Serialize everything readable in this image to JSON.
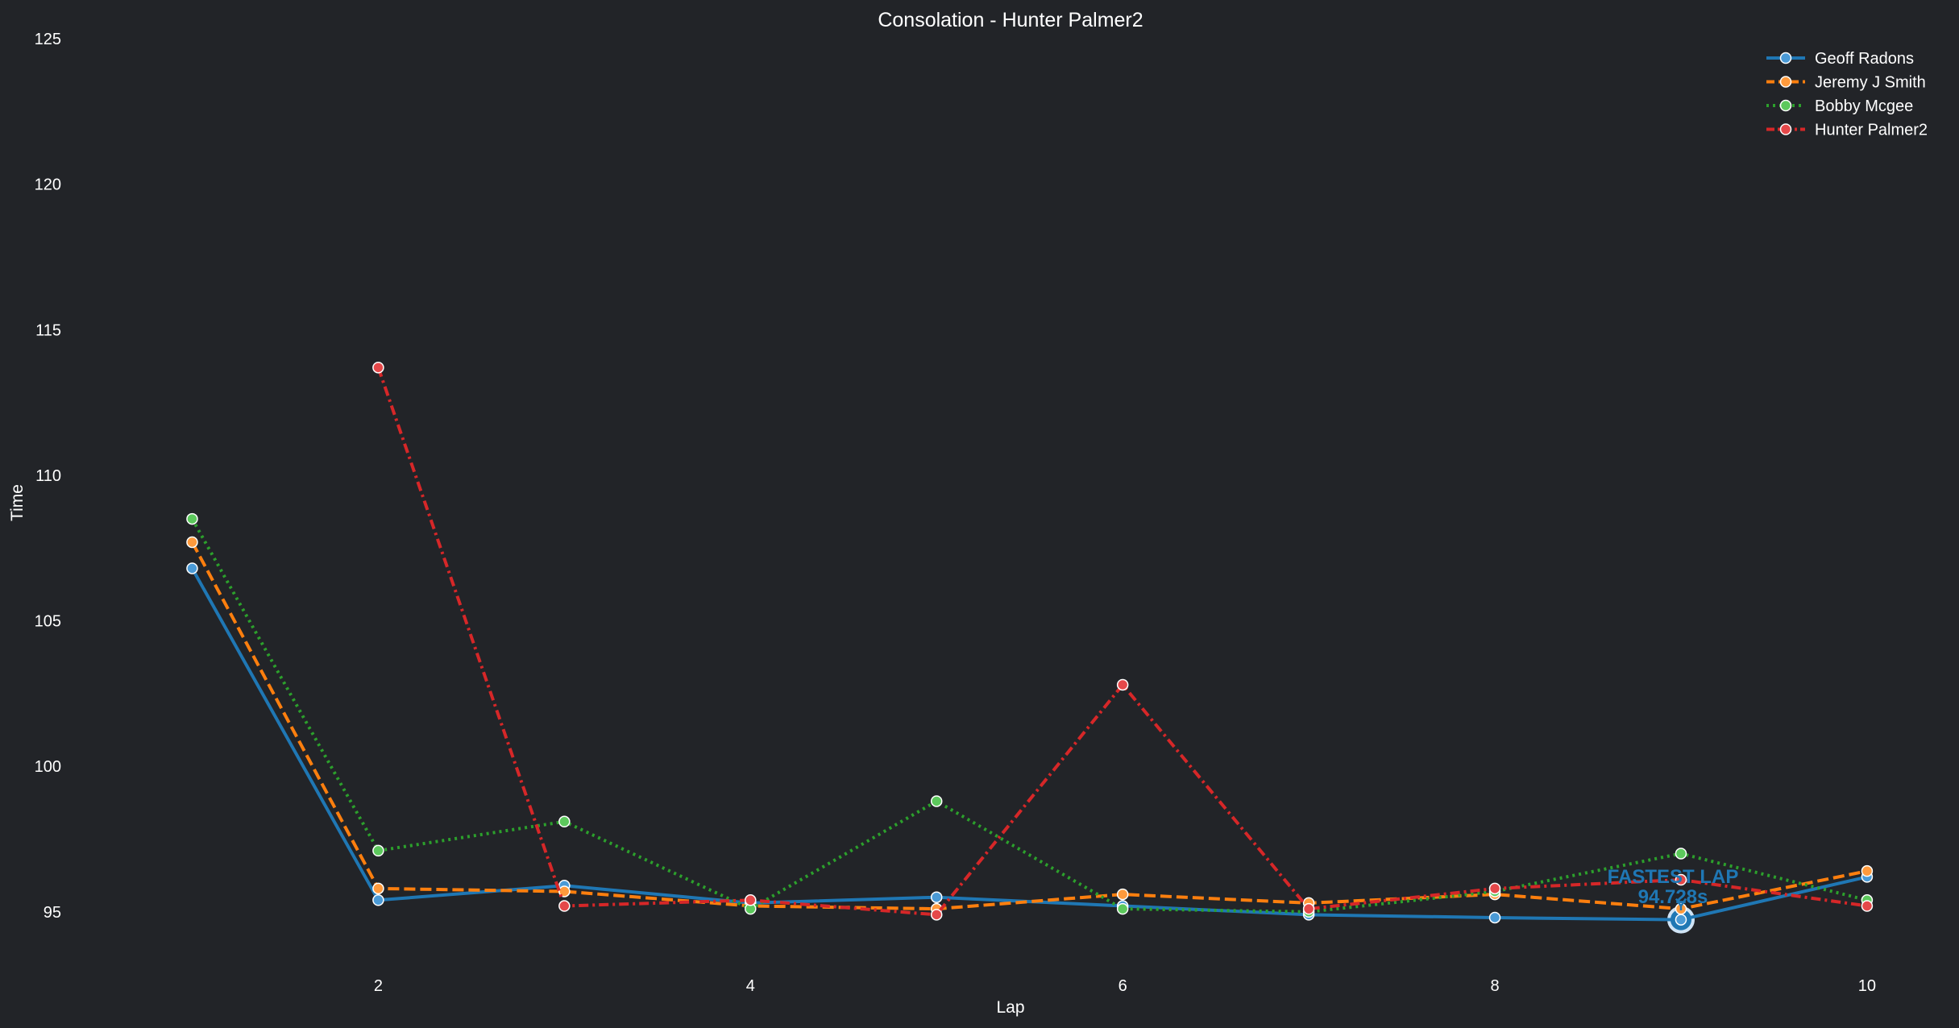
{
  "chart_data": {
    "type": "line",
    "title": "Consolation - Hunter Palmer2",
    "xlabel": "Lap",
    "ylabel": "Time",
    "xlim": [
      0.5,
      10.1
    ],
    "ylim": [
      93,
      125
    ],
    "xticks": [
      2,
      4,
      6,
      8,
      10
    ],
    "yticks": [
      95,
      100,
      105,
      110,
      115,
      120,
      125
    ],
    "grid": false,
    "legend_position": "top-right",
    "x": [
      1,
      2,
      3,
      4,
      5,
      6,
      7,
      8,
      9,
      10
    ],
    "series": [
      {
        "name": "Geoff Radons",
        "color": "#1f77b4",
        "marker_fill": "#4a9ad6",
        "dash": "solid",
        "values": [
          106.8,
          95.4,
          95.9,
          95.3,
          95.5,
          95.2,
          94.9,
          94.8,
          94.728,
          96.2
        ]
      },
      {
        "name": "Jeremy J Smith",
        "color": "#ff7f0e",
        "marker_fill": "#ff9a3c",
        "dash": "dashed",
        "values": [
          107.7,
          95.8,
          95.7,
          95.2,
          95.1,
          95.6,
          95.3,
          95.6,
          95.1,
          96.4
        ]
      },
      {
        "name": "Bobby Mcgee",
        "color": "#2ca02c",
        "marker_fill": "#5cc85c",
        "dash": "dotted",
        "values": [
          108.5,
          97.1,
          98.1,
          95.1,
          98.8,
          95.1,
          95.0,
          95.7,
          97.0,
          95.4
        ]
      },
      {
        "name": "Hunter Palmer2",
        "color": "#d62728",
        "marker_fill": "#e5484a",
        "dash": "dashdot",
        "values": [
          null,
          113.7,
          95.2,
          95.4,
          94.9,
          102.8,
          95.1,
          95.8,
          96.1,
          95.2
        ]
      }
    ],
    "annotation": {
      "label": "FASTEST LAP",
      "value_text": "94.728s",
      "x": 9,
      "y": 94.728,
      "color": "#1f77b4"
    }
  }
}
